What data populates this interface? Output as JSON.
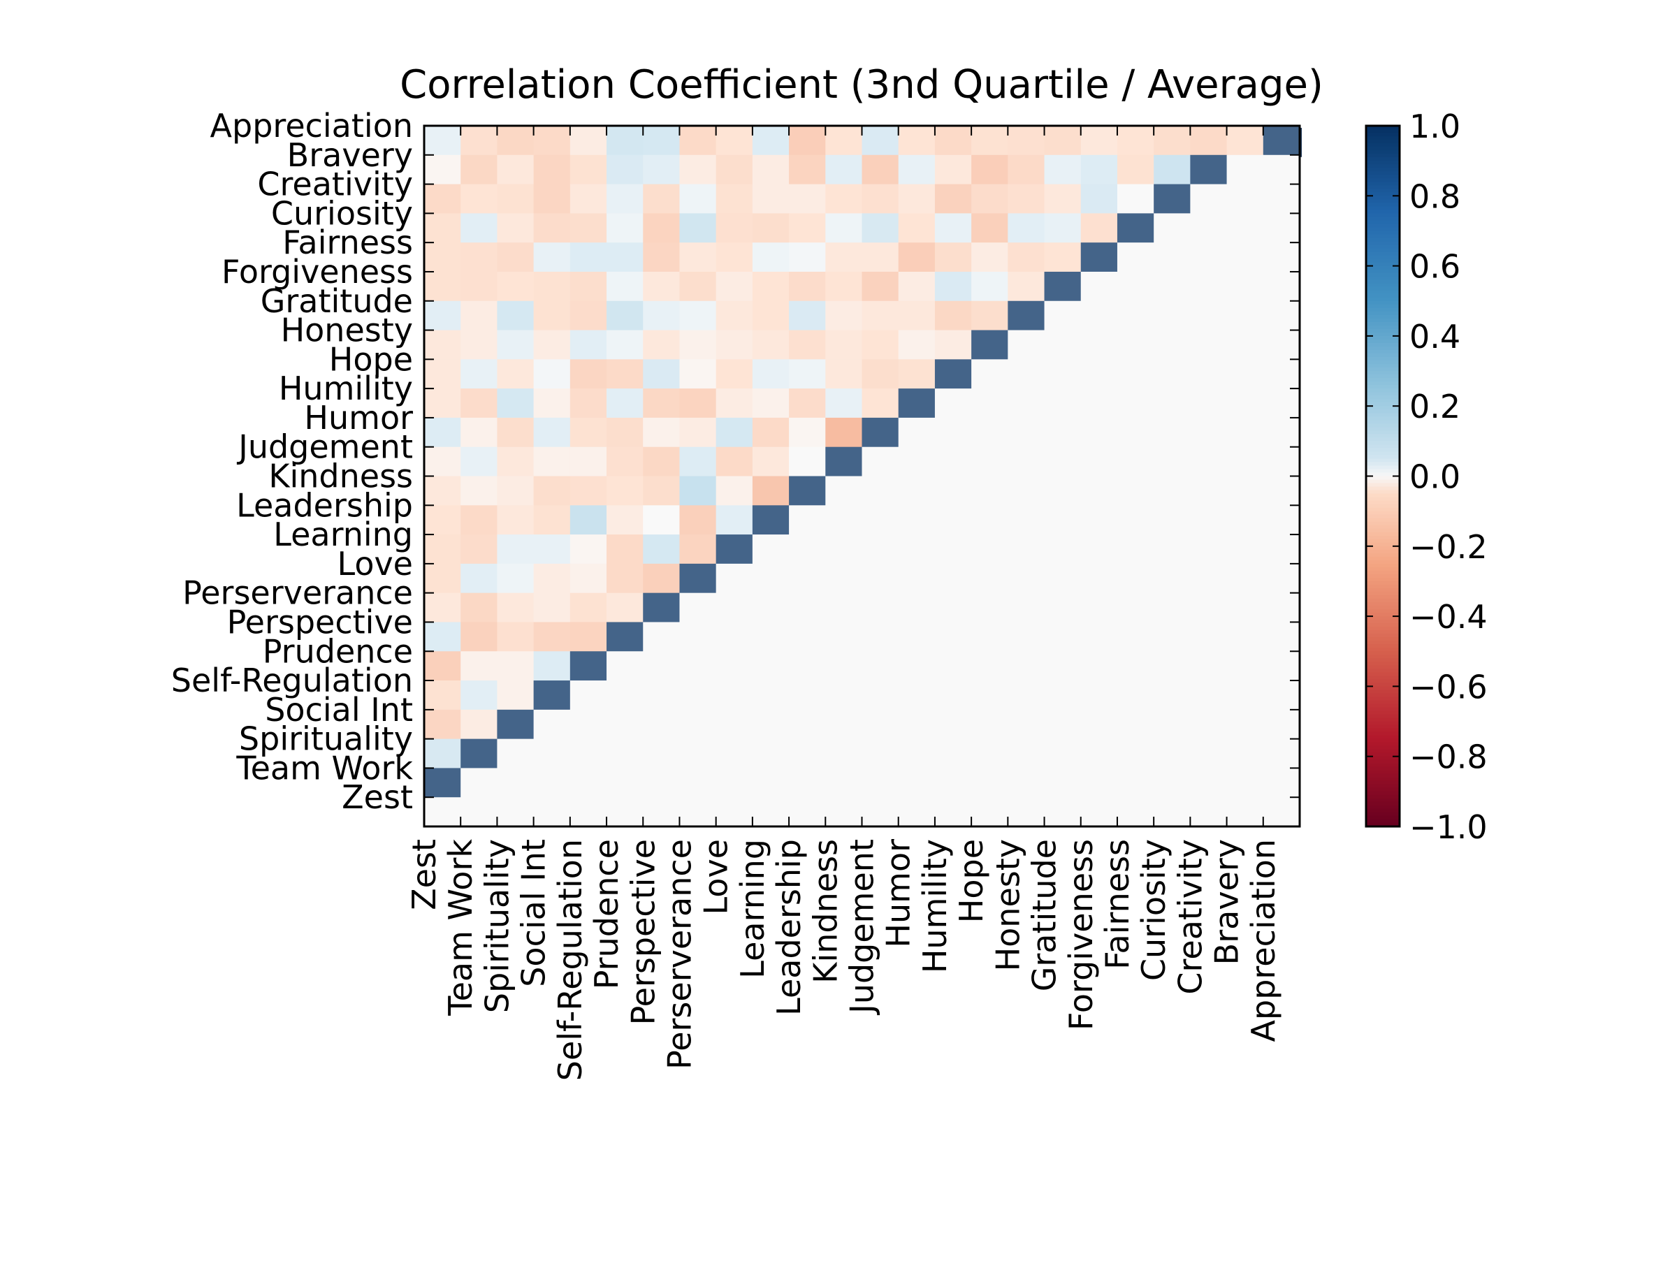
{
  "chart_data": {
    "type": "heatmap",
    "title": "Correlation Coefficient (3nd Quartile / Average)",
    "x_categories": [
      "Zest",
      "Team Work",
      "Spirituality",
      "Social Int",
      "Self-Regulation",
      "Prudence",
      "Perspective",
      "Perserverance",
      "Love",
      "Learning",
      "Leadership",
      "Kindness",
      "Judgement",
      "Humor",
      "Humility",
      "Hope",
      "Honesty",
      "Gratitude",
      "Forgiveness",
      "Fairness",
      "Curiosity",
      "Creativity",
      "Bravery",
      "Appreciation"
    ],
    "y_categories": [
      "Appreciation",
      "Bravery",
      "Creativity",
      "Curiosity",
      "Fairness",
      "Forgiveness",
      "Gratitude",
      "Honesty",
      "Hope",
      "Humility",
      "Humor",
      "Judgement",
      "Kindness",
      "Leadership",
      "Learning",
      "Love",
      "Perserverance",
      "Perspective",
      "Prudence",
      "Self-Regulation",
      "Social Int",
      "Spirituality",
      "Team Work",
      "Zest"
    ],
    "values": [
      [
        0.03,
        -0.07,
        -0.11,
        -0.1,
        -0.03,
        0.09,
        0.08,
        -0.1,
        -0.05,
        0.05,
        -0.16,
        -0.05,
        0.06,
        -0.05,
        -0.1,
        -0.06,
        -0.07,
        -0.08,
        -0.04,
        -0.05,
        -0.08,
        -0.1,
        -0.05,
        1
      ],
      [
        -0.01,
        -0.11,
        -0.04,
        -0.12,
        -0.06,
        0.06,
        0.04,
        -0.03,
        -0.08,
        -0.03,
        -0.13,
        0.04,
        -0.15,
        0.03,
        -0.04,
        -0.16,
        -0.1,
        0.03,
        0.05,
        -0.06,
        0.11,
        1,
        0,
        0
      ],
      [
        -0.1,
        -0.05,
        -0.06,
        -0.12,
        -0.04,
        0.03,
        -0.08,
        0.02,
        -0.06,
        -0.03,
        -0.03,
        -0.05,
        -0.07,
        -0.04,
        -0.14,
        -0.09,
        -0.07,
        -0.04,
        0.06,
        0,
        1,
        0,
        0,
        0
      ],
      [
        -0.06,
        0.04,
        -0.04,
        -0.09,
        -0.08,
        0.02,
        -0.13,
        0.1,
        -0.07,
        -0.08,
        -0.05,
        0.02,
        0.07,
        -0.05,
        0.03,
        -0.15,
        0.04,
        0.03,
        -0.07,
        1,
        0,
        0,
        0,
        0
      ],
      [
        -0.06,
        -0.07,
        -0.09,
        0.03,
        0.05,
        0.05,
        -0.12,
        -0.04,
        -0.05,
        0.02,
        0.01,
        -0.04,
        -0.04,
        -0.16,
        -0.08,
        -0.03,
        -0.07,
        -0.05,
        1,
        0,
        0,
        0,
        0,
        0
      ],
      [
        -0.06,
        -0.07,
        -0.05,
        -0.06,
        -0.08,
        0.02,
        -0.04,
        -0.08,
        -0.03,
        -0.05,
        -0.09,
        -0.05,
        -0.14,
        -0.03,
        0.06,
        0.02,
        -0.04,
        1,
        0,
        0,
        0,
        0,
        0,
        0
      ],
      [
        0.04,
        -0.03,
        0.08,
        -0.06,
        -0.09,
        0.1,
        0.03,
        0.02,
        -0.04,
        -0.05,
        0.06,
        -0.03,
        -0.04,
        -0.04,
        -0.11,
        -0.08,
        1,
        0,
        0,
        0,
        0,
        0,
        0,
        0
      ],
      [
        -0.04,
        -0.03,
        0.03,
        -0.03,
        0.04,
        0.02,
        -0.04,
        -0.02,
        -0.03,
        -0.04,
        -0.07,
        -0.04,
        -0.05,
        -0.02,
        -0.03,
        1,
        0,
        0,
        0,
        0,
        0,
        0,
        0,
        0
      ],
      [
        -0.04,
        0.03,
        -0.04,
        0.01,
        -0.12,
        -0.1,
        0.06,
        -0.01,
        -0.05,
        0.03,
        0.02,
        -0.04,
        -0.08,
        -0.06,
        1,
        0,
        0,
        0,
        0,
        0,
        0,
        0,
        0,
        0
      ],
      [
        -0.04,
        -0.09,
        0.08,
        -0.02,
        -0.09,
        0.04,
        -0.11,
        -0.13,
        -0.03,
        -0.02,
        -0.09,
        0.03,
        -0.05,
        1,
        0,
        0,
        0,
        0,
        0,
        0,
        0,
        0,
        0,
        0
      ],
      [
        0.05,
        -0.02,
        -0.08,
        0.04,
        -0.06,
        -0.08,
        -0.02,
        -0.03,
        0.08,
        -0.1,
        -0.01,
        -0.25,
        1,
        0,
        0,
        0,
        0,
        0,
        0,
        0,
        0,
        0,
        0,
        0
      ],
      [
        -0.02,
        0.03,
        -0.04,
        -0.02,
        -0.02,
        -0.07,
        -0.11,
        0.05,
        -0.1,
        -0.04,
        0,
        1,
        0,
        0,
        0,
        0,
        0,
        0,
        0,
        0,
        0,
        0,
        0,
        0
      ],
      [
        -0.04,
        -0.02,
        -0.03,
        -0.08,
        -0.07,
        -0.05,
        -0.08,
        0.14,
        -0.02,
        -0.2,
        1,
        0,
        0,
        0,
        0,
        0,
        0,
        0,
        0,
        0,
        0,
        0,
        0,
        0
      ],
      [
        -0.05,
        -0.1,
        -0.04,
        -0.06,
        0.13,
        -0.03,
        0,
        -0.15,
        0.04,
        1,
        0,
        0,
        0,
        0,
        0,
        0,
        0,
        0,
        0,
        0,
        0,
        0,
        0,
        0
      ],
      [
        -0.06,
        -0.09,
        0.03,
        0.03,
        -0.01,
        -0.1,
        0.08,
        -0.13,
        1,
        0,
        0,
        0,
        0,
        0,
        0,
        0,
        0,
        0,
        0,
        0,
        0,
        0,
        0,
        0
      ],
      [
        -0.06,
        0.04,
        0.02,
        -0.03,
        -0.02,
        -0.1,
        -0.15,
        1,
        0,
        0,
        0,
        0,
        0,
        0,
        0,
        0,
        0,
        0,
        0,
        0,
        0,
        0,
        0,
        0
      ],
      [
        -0.04,
        -0.11,
        -0.04,
        -0.03,
        -0.06,
        -0.04,
        1,
        0,
        0,
        0,
        0,
        0,
        0,
        0,
        0,
        0,
        0,
        0,
        0,
        0,
        0,
        0,
        0,
        0
      ],
      [
        0.05,
        -0.14,
        -0.07,
        -0.12,
        -0.13,
        1,
        0,
        0,
        0,
        0,
        0,
        0,
        0,
        0,
        0,
        0,
        0,
        0,
        0,
        0,
        0,
        0,
        0,
        0
      ],
      [
        -0.15,
        -0.02,
        -0.02,
        0.05,
        1,
        0,
        0,
        0,
        0,
        0,
        0,
        0,
        0,
        0,
        0,
        0,
        0,
        0,
        0,
        0,
        0,
        0,
        0,
        0
      ],
      [
        -0.06,
        0.04,
        -0.02,
        1,
        0,
        0,
        0,
        0,
        0,
        0,
        0,
        0,
        0,
        0,
        0,
        0,
        0,
        0,
        0,
        0,
        0,
        0,
        0,
        0
      ],
      [
        -0.12,
        -0.03,
        1,
        0,
        0,
        0,
        0,
        0,
        0,
        0,
        0,
        0,
        0,
        0,
        0,
        0,
        0,
        0,
        0,
        0,
        0,
        0,
        0,
        0
      ],
      [
        0.07,
        1,
        0,
        0,
        0,
        0,
        0,
        0,
        0,
        0,
        0,
        0,
        0,
        0,
        0,
        0,
        0,
        0,
        0,
        0,
        0,
        0,
        0,
        0
      ],
      [
        1,
        0,
        0,
        0,
        0,
        0,
        0,
        0,
        0,
        0,
        0,
        0,
        0,
        0,
        0,
        0,
        0,
        0,
        0,
        0,
        0,
        0,
        0,
        0
      ],
      [
        0,
        0,
        0,
        0,
        0,
        0,
        0,
        0,
        0,
        0,
        0,
        0,
        0,
        0,
        0,
        0,
        0,
        0,
        0,
        0,
        0,
        0,
        0,
        0
      ]
    ],
    "colorbar": {
      "range": [
        -1.0,
        1.0
      ],
      "ticks": [
        "1.0",
        "0.8",
        "0.6",
        "0.4",
        "0.2",
        "0.0",
        "−0.2",
        "−0.4",
        "−0.6",
        "−0.8",
        "−1.0"
      ]
    },
    "colormap": "RdBu",
    "grid": false,
    "legend": "none"
  }
}
